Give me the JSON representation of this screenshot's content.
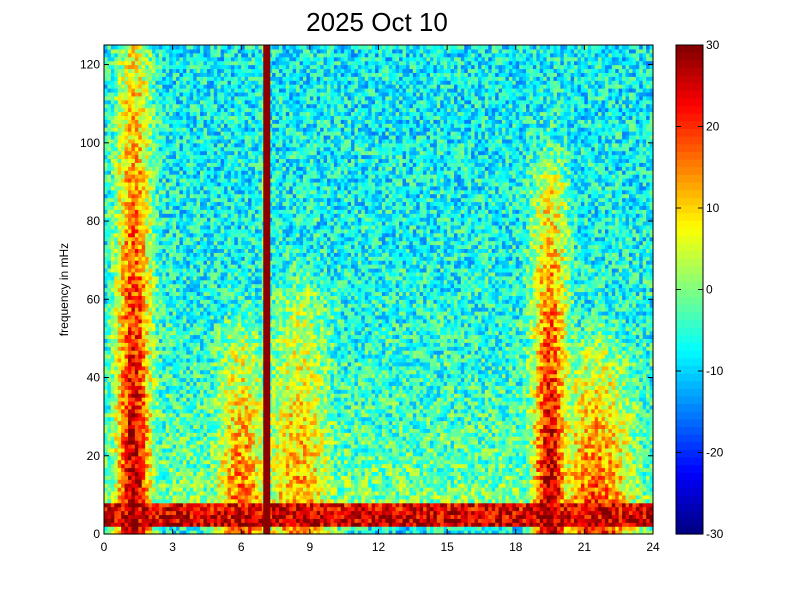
{
  "chart_data": {
    "type": "heatmap",
    "title": "2025 Oct 10",
    "xlabel": "",
    "ylabel": "frequency in mHz",
    "xlim": [
      0,
      24
    ],
    "ylim": [
      0,
      125
    ],
    "x_ticks": [
      "0",
      "3",
      "6",
      "9",
      "12",
      "15",
      "18",
      "21",
      "24"
    ],
    "y_ticks": [
      "0",
      "20",
      "40",
      "60",
      "80",
      "100",
      "120"
    ],
    "colorbar": {
      "range": [
        -30,
        30
      ],
      "ticks": [
        "30",
        "20",
        "10",
        "0",
        "-10",
        "-20",
        "-30"
      ],
      "colormap": "jet"
    },
    "features": [
      {
        "x_center": 1.3,
        "x_width": 0.8,
        "max_freq": 125,
        "peak_value": 30
      },
      {
        "x_center": 6.0,
        "x_width": 1.2,
        "max_freq": 50,
        "peak_value": 20
      },
      {
        "x_center": 7.1,
        "x_width": 0.1,
        "max_freq": 125,
        "peak_value": 30
      },
      {
        "x_center": 8.5,
        "x_width": 1.5,
        "max_freq": 60,
        "peak_value": 16
      },
      {
        "x_center": 19.5,
        "x_width": 0.8,
        "max_freq": 90,
        "peak_value": 30
      },
      {
        "x_center": 21.5,
        "x_width": 1.8,
        "max_freq": 45,
        "peak_value": 22
      }
    ],
    "background_value": -8,
    "low_frequency_band": {
      "max_freq": 8,
      "value": 28
    }
  }
}
